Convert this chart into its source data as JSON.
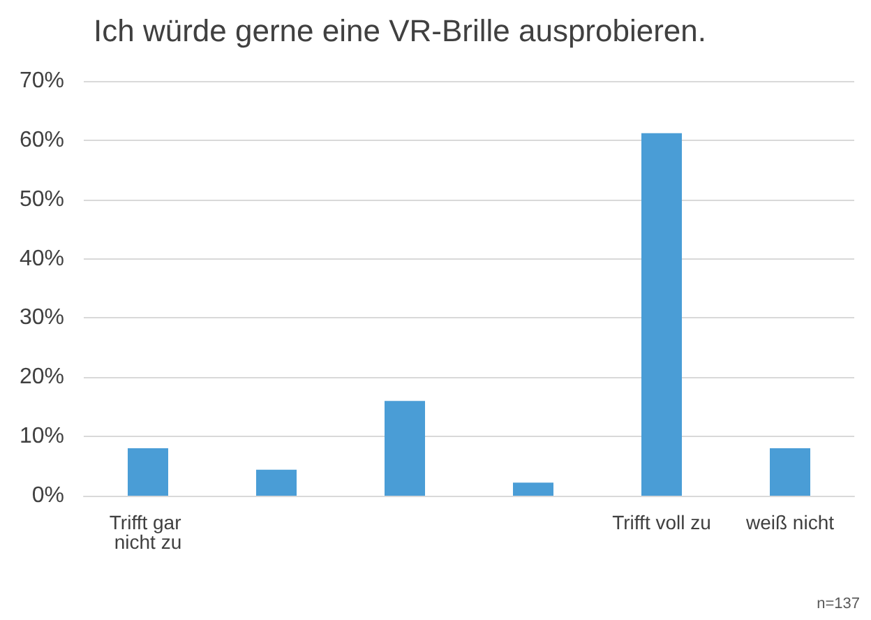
{
  "chart_data": {
    "type": "bar",
    "title": "Ich würde gerne eine VR-Brille ausprobieren.",
    "categories": [
      "Trifft gar nicht zu",
      null,
      null,
      null,
      "Trifft voll zu",
      "weiß nicht"
    ],
    "values": [
      8.0,
      4.4,
      16.0,
      2.2,
      61.2,
      8.0
    ],
    "color": "#4a9dd6",
    "ylim": [
      0,
      70
    ],
    "yticks": [
      {
        "value": 0,
        "label": "0%"
      },
      {
        "value": 10,
        "label": "10%"
      },
      {
        "value": 20,
        "label": "20%"
      },
      {
        "value": 30,
        "label": "30%"
      },
      {
        "value": 40,
        "label": "40%"
      },
      {
        "value": 50,
        "label": "50%"
      },
      {
        "value": 60,
        "label": "60%"
      },
      {
        "value": 70,
        "label": "70%"
      }
    ],
    "grid": "y",
    "annotations": [
      "n=137"
    ]
  }
}
